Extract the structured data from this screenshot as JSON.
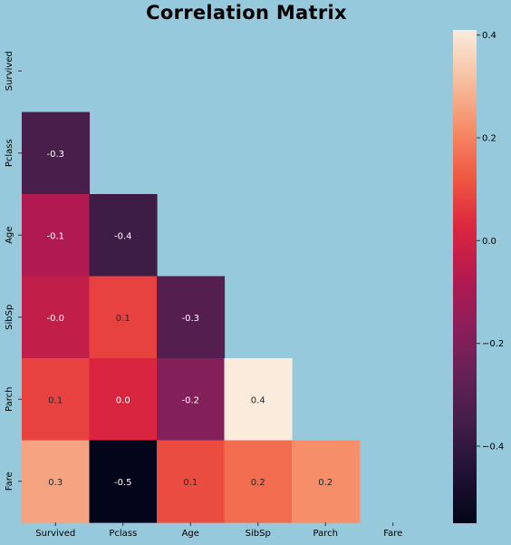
{
  "chart_data": {
    "type": "heatmap",
    "title": "Correlation Matrix",
    "variables": [
      "Survived",
      "Pclass",
      "Age",
      "SibSp",
      "Parch",
      "Fare"
    ],
    "mask": "upper-triangle-including-diagonal",
    "values": [
      [
        null,
        null,
        null,
        null,
        null,
        null
      ],
      [
        -0.34,
        null,
        null,
        null,
        null,
        null
      ],
      [
        -0.08,
        -0.37,
        null,
        null,
        null,
        null
      ],
      [
        -0.04,
        0.08,
        -0.31,
        null,
        null,
        null
      ],
      [
        0.08,
        0.02,
        -0.19,
        0.41,
        null,
        null
      ],
      [
        0.26,
        -0.55,
        0.1,
        0.16,
        0.22,
        null
      ]
    ],
    "annotations": [
      [
        "",
        "",
        "",
        "",
        "",
        ""
      ],
      [
        "-0.3",
        "",
        "",
        "",
        "",
        ""
      ],
      [
        "-0.1",
        "-0.4",
        "",
        "",
        "",
        ""
      ],
      [
        "-0.0",
        "0.1",
        "-0.3",
        "",
        "",
        ""
      ],
      [
        "0.1",
        "0.0",
        "-0.2",
        "0.4",
        "",
        ""
      ],
      [
        "0.3",
        "-0.5",
        "0.1",
        "0.2",
        "0.2",
        ""
      ]
    ],
    "colorbar": {
      "range": [
        -0.55,
        0.41
      ],
      "ticks": [
        0.4,
        0.2,
        0.0,
        -0.2,
        -0.4
      ],
      "tick_labels": [
        "0.4",
        "0.2",
        "0.0",
        "−0.2",
        "−0.4"
      ],
      "colormap": "rocket"
    },
    "grid": false,
    "legend": "colorbar-right"
  }
}
